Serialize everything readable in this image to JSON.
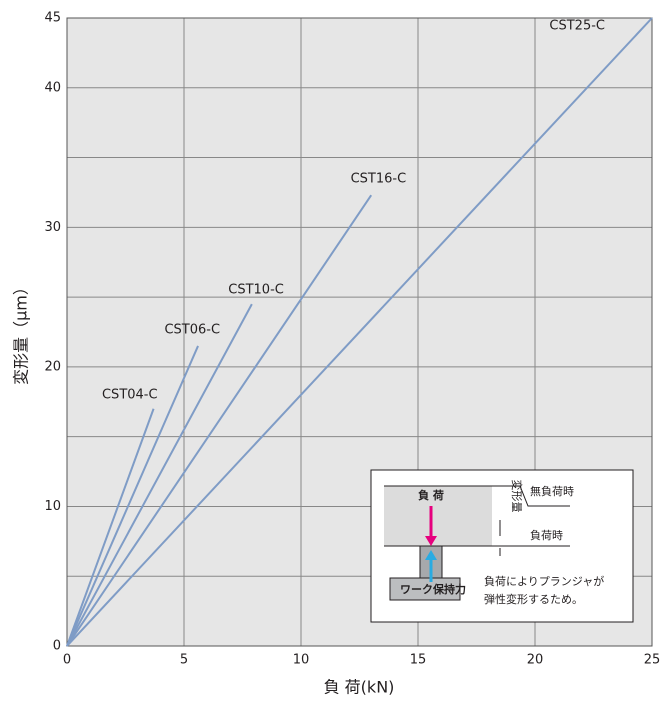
{
  "chart_data": {
    "type": "line",
    "xlabel": "負 荷(kN)",
    "ylabel": "変形量（μm）",
    "series": [
      {
        "name": "CST04-C",
        "color": "#7f9cc6",
        "x": [
          0,
          3.7
        ],
        "y": [
          0,
          17
        ]
      },
      {
        "name": "CST06-C",
        "color": "#7f9cc6",
        "x": [
          0,
          5.6
        ],
        "y": [
          0,
          21.5
        ]
      },
      {
        "name": "CST10-C",
        "color": "#7f9cc6",
        "x": [
          0,
          7.9
        ],
        "y": [
          0,
          24.5
        ]
      },
      {
        "name": "CST16-C",
        "color": "#7f9cc6",
        "x": [
          0,
          13
        ],
        "y": [
          0,
          32.3
        ]
      },
      {
        "name": "CST25-C",
        "color": "#7f9cc6",
        "x": [
          0,
          25
        ],
        "y": [
          0,
          45
        ]
      }
    ],
    "xlim": [
      0,
      25
    ],
    "xticks": [
      0,
      5,
      10,
      15,
      20,
      25
    ],
    "ylim": [
      0,
      45
    ],
    "yticks": [
      0,
      10,
      20,
      30,
      40,
      45
    ],
    "yminor": [
      5,
      15,
      25,
      35
    ],
    "grid": true
  },
  "inset": {
    "load": "負 荷",
    "work": "ワーク保持力",
    "deform": "変形量",
    "noload": "無負荷時",
    "loaded": "負荷時",
    "note": [
      "負荷によりプランジャが",
      "弾性変形するため。"
    ]
  }
}
